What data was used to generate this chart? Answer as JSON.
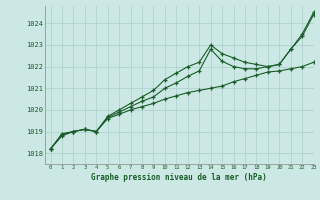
{
  "background_color": "#cce8e4",
  "grid_color": "#aacfcb",
  "line_color": "#1a5c2a",
  "text_color": "#1a5c2a",
  "xlabel": "Graphe pression niveau de la mer (hPa)",
  "ylim": [
    1017.5,
    1024.8
  ],
  "xlim": [
    -0.5,
    23
  ],
  "yticks": [
    1018,
    1019,
    1020,
    1021,
    1022,
    1023,
    1024
  ],
  "xticks": [
    0,
    1,
    2,
    3,
    4,
    5,
    6,
    7,
    8,
    9,
    10,
    11,
    12,
    13,
    14,
    15,
    16,
    17,
    18,
    19,
    20,
    21,
    22,
    23
  ],
  "series1": [
    1018.2,
    1018.9,
    1019.0,
    1019.1,
    1019.0,
    1019.7,
    1020.0,
    1020.3,
    1020.6,
    1020.9,
    1021.4,
    1021.7,
    1022.0,
    1022.2,
    1023.0,
    1022.6,
    1022.4,
    1022.2,
    1022.1,
    1022.0,
    1022.1,
    1022.8,
    1023.5,
    1024.5
  ],
  "series2": [
    1018.2,
    1018.8,
    1019.0,
    1019.1,
    1019.0,
    1019.6,
    1019.8,
    1020.0,
    1020.15,
    1020.3,
    1020.5,
    1020.65,
    1020.8,
    1020.9,
    1021.0,
    1021.1,
    1021.3,
    1021.45,
    1021.6,
    1021.75,
    1021.8,
    1021.9,
    1022.0,
    1022.2
  ],
  "series3": [
    1018.2,
    1018.85,
    1019.0,
    1019.1,
    1019.0,
    1019.65,
    1019.9,
    1020.15,
    1020.4,
    1020.6,
    1021.0,
    1021.25,
    1021.55,
    1021.8,
    1022.8,
    1022.25,
    1022.0,
    1021.9,
    1021.9,
    1022.0,
    1022.1,
    1022.8,
    1023.4,
    1024.4
  ]
}
